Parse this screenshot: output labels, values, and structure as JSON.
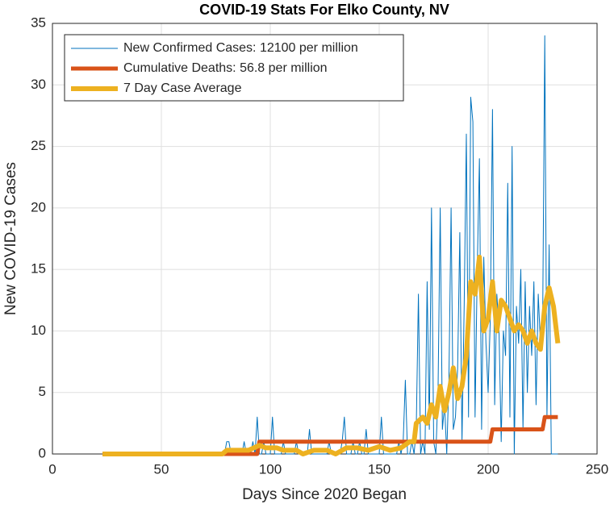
{
  "chart_data": {
    "type": "line",
    "title": "COVID-19 Stats For Elko County, NV",
    "x_label": "Days Since 2020 Began",
    "y_label": "New COVID-19 Cases",
    "xlim": [
      0,
      250
    ],
    "xticks": [
      0,
      50,
      100,
      150,
      200,
      250
    ],
    "ylim": [
      0,
      35
    ],
    "yticks": [
      0,
      5,
      10,
      15,
      20,
      25,
      30,
      35
    ],
    "grid": true,
    "legend": "upper left",
    "series": [
      {
        "name": "New Confirmed Cases: 12100 per million",
        "color": "#0072bd",
        "x": [
          23,
          24,
          25,
          26,
          27,
          28,
          29,
          30,
          31,
          32,
          33,
          34,
          35,
          36,
          37,
          38,
          39,
          40,
          41,
          42,
          43,
          44,
          45,
          46,
          47,
          48,
          49,
          50,
          51,
          52,
          53,
          54,
          55,
          56,
          57,
          58,
          59,
          60,
          61,
          62,
          63,
          64,
          65,
          66,
          67,
          68,
          69,
          70,
          71,
          72,
          73,
          74,
          75,
          76,
          77,
          78,
          79,
          80,
          81,
          82,
          83,
          84,
          85,
          86,
          87,
          88,
          89,
          90,
          91,
          92,
          93,
          94,
          95,
          96,
          97,
          98,
          99,
          100,
          101,
          102,
          103,
          104,
          105,
          106,
          107,
          108,
          109,
          110,
          111,
          112,
          113,
          114,
          115,
          116,
          117,
          118,
          119,
          120,
          121,
          122,
          123,
          124,
          125,
          126,
          127,
          128,
          129,
          130,
          131,
          132,
          133,
          134,
          135,
          136,
          137,
          138,
          139,
          140,
          141,
          142,
          143,
          144,
          145,
          146,
          147,
          148,
          149,
          150,
          151,
          152,
          153,
          154,
          155,
          156,
          157,
          158,
          159,
          160,
          161,
          162,
          163,
          164,
          165,
          166,
          167,
          168,
          169,
          170,
          171,
          172,
          173,
          174,
          175,
          176,
          177,
          178,
          179,
          180,
          181,
          182,
          183,
          184,
          185,
          186,
          187,
          188,
          189,
          190,
          191,
          192,
          193,
          194,
          195,
          196,
          197,
          198,
          199,
          200,
          201,
          202,
          203,
          204,
          205,
          206,
          207,
          208,
          209,
          210,
          211,
          212,
          213,
          214,
          215,
          216,
          217,
          218,
          219,
          220,
          221,
          222,
          223,
          224,
          225,
          226,
          227,
          228,
          229,
          230,
          231,
          232
        ],
        "values": [
          0,
          0,
          0,
          0,
          0,
          0,
          0,
          0,
          0,
          0,
          0,
          0,
          0,
          0,
          0,
          0,
          0,
          0,
          0,
          0,
          0,
          0,
          0,
          0,
          0,
          0,
          0,
          0,
          0,
          0,
          0,
          0,
          0,
          0,
          0,
          0,
          0,
          0,
          0,
          0,
          0,
          0,
          0,
          0,
          0,
          0,
          0,
          0,
          0,
          0,
          0,
          0,
          0,
          0,
          0,
          0,
          0,
          1,
          1,
          0,
          0,
          0,
          0,
          0,
          0,
          1,
          0,
          0,
          0,
          1,
          0,
          3,
          0,
          0,
          1,
          0,
          0,
          0,
          3,
          0,
          0,
          0,
          0,
          1,
          0,
          0,
          0,
          0,
          0,
          1,
          0,
          0,
          0,
          0,
          0,
          2,
          0,
          0,
          0,
          0,
          0,
          0,
          0,
          0,
          1,
          0,
          0,
          0,
          0,
          0,
          1,
          3,
          0,
          0,
          0,
          1,
          0,
          0,
          1,
          0,
          0,
          2,
          0,
          0,
          0,
          0,
          0,
          0,
          3,
          0,
          0,
          0,
          0,
          0,
          0,
          0,
          1,
          0,
          1,
          6,
          0,
          0,
          1,
          0,
          2,
          13,
          0,
          1,
          0,
          14,
          2,
          20,
          1,
          0,
          5,
          20,
          2,
          4,
          0,
          6,
          20,
          2,
          3,
          7,
          18,
          1,
          12,
          26,
          3,
          29,
          27,
          3,
          15,
          24,
          2,
          16,
          9,
          5,
          11,
          28,
          4,
          13,
          10,
          1,
          10,
          8,
          22,
          3,
          25,
          0,
          12,
          9,
          15,
          2,
          14,
          5,
          12,
          8,
          14,
          4,
          13,
          9,
          10,
          34,
          3,
          17,
          0,
          0,
          0,
          0
        ]
      },
      {
        "name": "Cumulative Deaths: 56.8 per million",
        "color": "#d95319",
        "x": [
          23,
          94,
          95,
          201,
          202,
          225,
          226,
          232
        ],
        "values": [
          0,
          0,
          1,
          1,
          2,
          2,
          3,
          3
        ]
      },
      {
        "name": "7 Day Case Average",
        "color": "#edb120",
        "x": [
          23,
          78,
          80,
          86,
          90,
          95,
          98,
          103,
          106,
          112,
          115,
          120,
          126,
          130,
          135,
          140,
          145,
          150,
          155,
          160,
          164,
          166,
          167,
          170,
          172,
          174,
          176,
          178,
          180,
          182,
          184,
          186,
          188,
          190,
          192,
          194,
          196,
          198,
          200,
          202,
          204,
          206,
          208,
          210,
          212,
          214,
          216,
          218,
          220,
          222,
          224,
          226,
          228,
          230,
          232
        ],
        "values": [
          0,
          0,
          0.3,
          0.3,
          0.3,
          0.7,
          0.5,
          0.5,
          0.3,
          0.3,
          0,
          0.3,
          0.3,
          0,
          0.5,
          0.5,
          0.3,
          0.6,
          0.3,
          0.5,
          1,
          1,
          2.5,
          3,
          2.5,
          4,
          3,
          5.5,
          3.5,
          5,
          7,
          4.5,
          5.5,
          8,
          14,
          13,
          16,
          10,
          11,
          14,
          10,
          12.5,
          12,
          11,
          10,
          10.5,
          10,
          9,
          10,
          9,
          8.5,
          12,
          13.5,
          12,
          9
        ]
      }
    ]
  }
}
